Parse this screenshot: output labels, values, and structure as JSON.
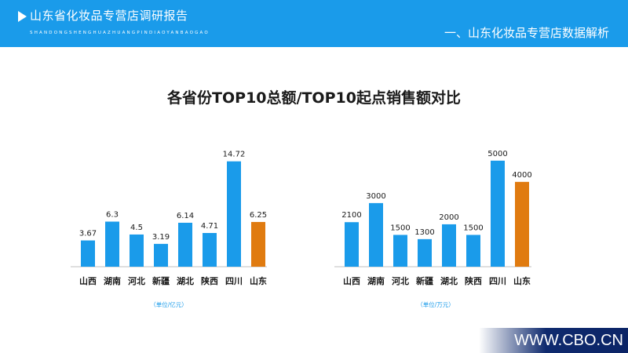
{
  "header": {
    "title": "山东省化妆品专营店调研报告",
    "subtitle": "SHANDONGSHENGHUAZHUANGPINDIAOYANBAOGAO",
    "section": "一、山东化妆品专营店数据解析"
  },
  "main_title": "各省份TOP10总额/TOP10起点销售额对比",
  "footer": {
    "url": "WWW.CBO.CN"
  },
  "colors": {
    "header_bg": "#1a9bea",
    "bar_blue": "#1a9bea",
    "bar_highlight": "#e07b10"
  },
  "chart_data": [
    {
      "type": "bar",
      "categories": [
        "山西",
        "湖南",
        "河北",
        "新疆",
        "湖北",
        "陕西",
        "四川",
        "山东"
      ],
      "values": [
        3.67,
        6.3,
        4.5,
        3.19,
        6.14,
        4.71,
        14.72,
        6.25
      ],
      "value_labels": [
        "3.67",
        "6.3",
        "4.5",
        "3.19",
        "6.14",
        "4.71",
        "14.72",
        "6.25"
      ],
      "unit": "（单位/亿元）",
      "highlight": "山东",
      "ylim": [
        0,
        16
      ],
      "grid": false
    },
    {
      "type": "bar",
      "categories": [
        "山西",
        "湖南",
        "河北",
        "新疆",
        "湖北",
        "陕西",
        "四川",
        "山东"
      ],
      "values": [
        2100,
        3000,
        1500,
        1300,
        2000,
        1500,
        5000,
        4000
      ],
      "value_labels": [
        "2100",
        "3000",
        "1500",
        "1300",
        "2000",
        "1500",
        "5000",
        "4000"
      ],
      "unit": "（单位/万元）",
      "highlight": "山东",
      "ylim": [
        0,
        5400
      ],
      "grid": false
    }
  ]
}
